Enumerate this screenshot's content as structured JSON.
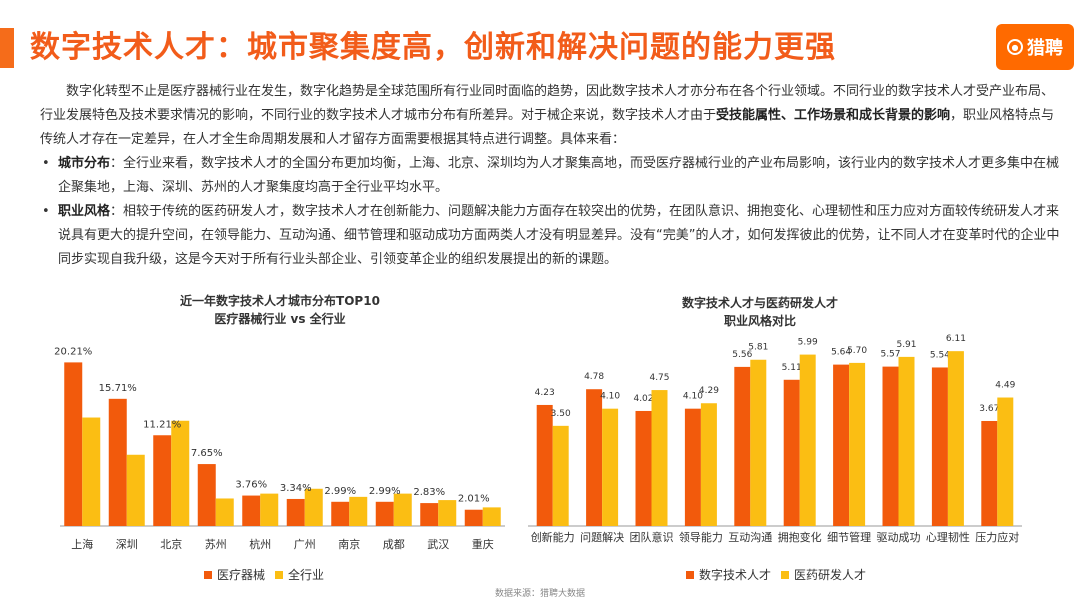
{
  "title": "数字技术人才：城市聚集度高，创新和解决问题的能力更强",
  "logo_text": "猎聘",
  "intro": {
    "p1": "数字化转型不止是医疗器械行业在发生，数字化趋势是全球范围所有行业同时面临的趋势，因此数字技术人才亦分布在各个行业领域。不同行业的数字技术人才受产业布局、行业发展特色及技术要求情况的影响，不同行业的数字技术人才城市分布有所差异。对于械企来说，数字技术人才由于",
    "p1_bold": "受技能属性、工作场景和成长背景的影响",
    "p1_tail": "，职业风格特点与传统人才存在一定差异，在人才全生命周期发展和人才留存方面需要根据其特点进行调整。具体来看："
  },
  "bullets": [
    {
      "label": "城市分布",
      "text": "：全行业来看，数字技术人才的全国分布更加均衡，上海、北京、深圳均为人才聚集高地，而受医疗器械行业的产业布局影响，该行业内的数字技术人才更多集中在械企聚集地，上海、深圳、苏州的人才聚集度均高于全行业平均水平。"
    },
    {
      "label": "职业风格",
      "text": "：相较于传统的医药研发人才，数字技术人才在创新能力、问题解决能力方面存在较突出的优势，在团队意识、拥抱变化、心理韧性和压力应对方面较传统研发人才来说具有更大的提升空间，在领导能力、互动沟通、细节管理和驱动成功方面两类人才没有明显差异。没有“完美”的人才，如何发挥彼此的优势，让不同人才在变革时代的企业中同步实现自我升级，这是今天对于所有行业头部企业、引领变革企业的组织发展提出的新的课题。"
    }
  ],
  "source": "数据来源：猎聘大数据",
  "colors": {
    "primary": "#f25a0c",
    "secondary": "#fbbe13"
  },
  "chart_data": [
    {
      "type": "bar",
      "title": "近一年数字技术人才城市分布TOP10",
      "subtitle": "医疗器械行业 vs 全行业",
      "categories": [
        "上海",
        "深圳",
        "北京",
        "苏州",
        "杭州",
        "广州",
        "南京",
        "成都",
        "武汉",
        "重庆"
      ],
      "series": [
        {
          "name": "医疗器械",
          "values": [
            20.21,
            15.71,
            11.21,
            7.65,
            3.76,
            3.34,
            2.99,
            2.99,
            2.83,
            2.01
          ]
        },
        {
          "name": "全行业",
          "values": [
            13.4,
            8.8,
            13.0,
            3.4,
            4.0,
            4.6,
            3.6,
            4.0,
            3.2,
            2.3
          ]
        }
      ],
      "data_labels": [
        "20.21%",
        "15.71%",
        "11.21%",
        "7.65%",
        "3.76%",
        "3.34%",
        "2.99%",
        "2.99%",
        "2.83%",
        "2.01%"
      ],
      "ylim": [
        0,
        21
      ],
      "grid": false,
      "legend_position": "bottom"
    },
    {
      "type": "bar",
      "title": "数字技术人才与医药研发人才",
      "subtitle": "职业风格对比",
      "categories": [
        "创新能力",
        "问题解决",
        "团队意识",
        "领导能力",
        "互动沟通",
        "拥抱变化",
        "细节管理",
        "驱动成功",
        "心理韧性",
        "压力应对"
      ],
      "series": [
        {
          "name": "数字技术人才",
          "values": [
            4.23,
            4.78,
            4.02,
            4.1,
            5.56,
            5.11,
            5.64,
            5.57,
            5.54,
            3.67
          ]
        },
        {
          "name": "医药研发人才",
          "values": [
            3.5,
            4.1,
            4.75,
            4.29,
            5.81,
            5.99,
            5.7,
            5.91,
            6.11,
            4.49
          ]
        }
      ],
      "data_labels": [
        [
          "4.23",
          "4.78",
          "4.02",
          "4.10",
          "5.56",
          "5.11",
          "5.64",
          "5.57",
          "5.54",
          "3.67"
        ],
        [
          "3.50",
          "4.10",
          "4.75",
          "4.29",
          "5.81",
          "5.99",
          "5.70",
          "5.91",
          "6.11",
          "4.49"
        ]
      ],
      "ylim": [
        0,
        6.5
      ],
      "grid": false,
      "legend_position": "bottom"
    }
  ]
}
